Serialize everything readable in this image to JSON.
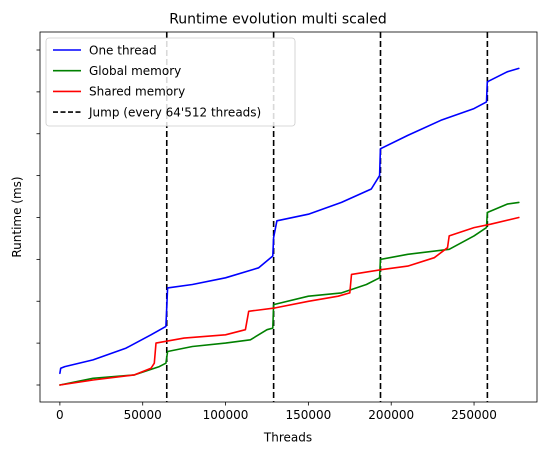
{
  "chart_data": {
    "type": "line",
    "title": "Runtime evolution multi scaled",
    "xlabel": "Threads",
    "ylabel": "Runtime (ms)",
    "xlim": [
      -12000,
      288000
    ],
    "ylim": [
      0,
      1
    ],
    "xticks": [
      0,
      50000,
      100000,
      150000,
      200000,
      250000
    ],
    "x_tick_labels": [
      "0",
      "50000",
      "100000",
      "150000",
      "200000",
      "250000"
    ],
    "y_tick_labels_shown": false,
    "grid": false,
    "legend_position": "top-left",
    "series": [
      {
        "name": "One thread",
        "color": "#0000ff",
        "style": "solid",
        "points": [
          [
            0,
            0.035
          ],
          [
            500,
            0.05
          ],
          [
            3000,
            0.055
          ],
          [
            20000,
            0.075
          ],
          [
            40000,
            0.11
          ],
          [
            55000,
            0.15
          ],
          [
            64000,
            0.175
          ],
          [
            65000,
            0.29
          ],
          [
            80000,
            0.3
          ],
          [
            100000,
            0.32
          ],
          [
            120000,
            0.35
          ],
          [
            128500,
            0.385
          ],
          [
            129000,
            0.44
          ],
          [
            131000,
            0.49
          ],
          [
            150000,
            0.51
          ],
          [
            170000,
            0.545
          ],
          [
            188000,
            0.585
          ],
          [
            193000,
            0.625
          ],
          [
            193500,
            0.705
          ],
          [
            210000,
            0.745
          ],
          [
            230000,
            0.79
          ],
          [
            250000,
            0.825
          ],
          [
            257500,
            0.845
          ],
          [
            258000,
            0.905
          ],
          [
            270000,
            0.935
          ],
          [
            277000,
            0.945
          ]
        ]
      },
      {
        "name": "Global memory",
        "color": "#008000",
        "style": "solid",
        "points": [
          [
            0,
            0.0
          ],
          [
            20000,
            0.02
          ],
          [
            45000,
            0.03
          ],
          [
            60000,
            0.055
          ],
          [
            64000,
            0.065
          ],
          [
            65000,
            0.1
          ],
          [
            80000,
            0.115
          ],
          [
            100000,
            0.125
          ],
          [
            115000,
            0.135
          ],
          [
            125000,
            0.165
          ],
          [
            128500,
            0.17
          ],
          [
            129000,
            0.24
          ],
          [
            150000,
            0.265
          ],
          [
            170000,
            0.275
          ],
          [
            185000,
            0.3
          ],
          [
            193000,
            0.32
          ],
          [
            193500,
            0.375
          ],
          [
            210000,
            0.39
          ],
          [
            235000,
            0.405
          ],
          [
            250000,
            0.445
          ],
          [
            257500,
            0.47
          ],
          [
            258000,
            0.515
          ],
          [
            270000,
            0.54
          ],
          [
            277000,
            0.545
          ]
        ]
      },
      {
        "name": "Shared memory",
        "color": "#ff0000",
        "style": "solid",
        "points": [
          [
            0,
            0.0
          ],
          [
            20000,
            0.015
          ],
          [
            45000,
            0.03
          ],
          [
            55000,
            0.05
          ],
          [
            57000,
            0.065
          ],
          [
            58000,
            0.125
          ],
          [
            75000,
            0.14
          ],
          [
            100000,
            0.15
          ],
          [
            112000,
            0.165
          ],
          [
            114000,
            0.22
          ],
          [
            130000,
            0.23
          ],
          [
            150000,
            0.25
          ],
          [
            168000,
            0.265
          ],
          [
            175000,
            0.275
          ],
          [
            176000,
            0.33
          ],
          [
            195000,
            0.345
          ],
          [
            210000,
            0.355
          ],
          [
            226000,
            0.38
          ],
          [
            234000,
            0.41
          ],
          [
            235000,
            0.445
          ],
          [
            250000,
            0.47
          ],
          [
            260000,
            0.48
          ],
          [
            277000,
            0.5
          ]
        ]
      }
    ],
    "vlines": {
      "name": "Jump (every 64'512 threads)",
      "color": "#000000",
      "style": "dashed",
      "x": [
        64512,
        129024,
        193536,
        258048
      ]
    }
  }
}
